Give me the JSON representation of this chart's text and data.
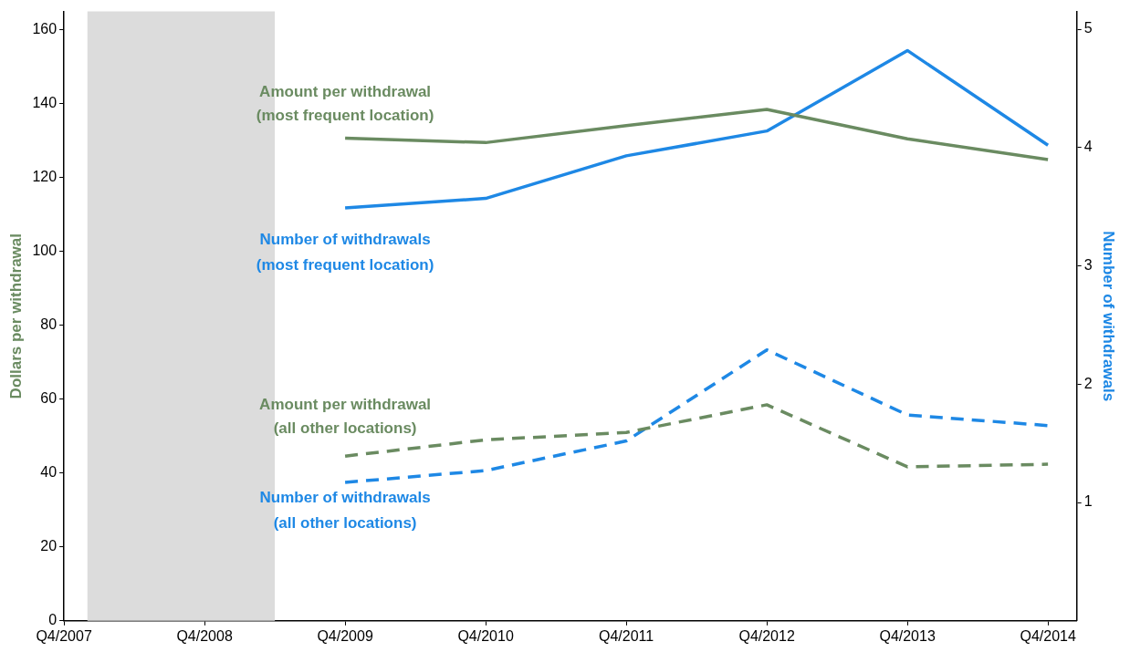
{
  "chart_data": {
    "type": "line",
    "ylabel": "Dollars per withdrawal",
    "y2label": "Number of withdrawals",
    "xlim": [
      "2007-10",
      "2014-12-15"
    ],
    "xticks": [
      {
        "value": "2007-10",
        "label": "Q4/2007"
      },
      {
        "value": "2008-10",
        "label": "Q4/2008"
      },
      {
        "value": "2009-10",
        "label": "Q4/2009"
      },
      {
        "value": "2010-10",
        "label": "Q4/2010"
      },
      {
        "value": "2011-10",
        "label": "Q4/2011"
      },
      {
        "value": "2012-10",
        "label": "Q4/2012"
      },
      {
        "value": "2013-10",
        "label": "Q4/2013"
      },
      {
        "value": "2014-10",
        "label": "Q4/2014"
      }
    ],
    "ylim": [
      0,
      165
    ],
    "yticks": [
      0,
      20,
      40,
      60,
      80,
      100,
      120,
      140,
      160
    ],
    "y2lim": [
      0,
      5.15
    ],
    "y2ticks": [
      1,
      2,
      3,
      4,
      5
    ],
    "x": [
      "2009-10",
      "2010-10",
      "2011-10",
      "2012-10",
      "2013-10",
      "2014-10"
    ],
    "series": [
      {
        "name": "Amount per withdrawal (most frequent location)",
        "color": "#6a8b61",
        "values": [
          130.7,
          129.5,
          134.1,
          138.5,
          130.5,
          124.9
        ],
        "line_style": "solid"
      },
      {
        "name": "Number of withdrawals (most frequent location)",
        "color": "#1e88e5",
        "values": [
          3.49,
          3.57,
          3.93,
          4.14,
          4.82,
          4.02
        ],
        "axis": "y2",
        "line_style": "solid"
      },
      {
        "name": "Amount per withdrawal (all other locations)",
        "color": "#6a8b61",
        "values": [
          44.6,
          49,
          51,
          58.5,
          41.7,
          42.4
        ],
        "line_style": "dashed"
      },
      {
        "name": "Number of withdrawals (all other locations)",
        "color": "#1e88e5",
        "values": [
          1.17,
          1.27,
          1.52,
          2.29,
          1.74,
          1.65
        ],
        "axis": "y2",
        "line_style": "dashed"
      }
    ],
    "bands": [
      {
        "axis": "x",
        "from": "2007-12",
        "to": "2009-04",
        "color": "#dcdcdc"
      }
    ],
    "grid": false,
    "legend": false,
    "marker": "none"
  }
}
